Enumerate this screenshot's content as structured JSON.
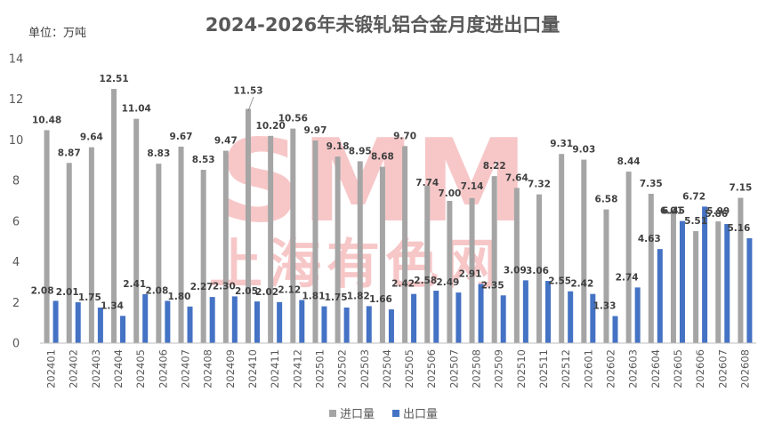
{
  "chart_data": {
    "type": "bar",
    "title": "2024-2026年未锻轧铝合金月度进出口量",
    "unit_label": "单位：万吨",
    "ylim": [
      0,
      14
    ],
    "yticks": [
      0,
      2,
      4,
      6,
      8,
      10,
      12,
      14
    ],
    "grid": false,
    "legend_position": "bottom",
    "categories": [
      "202401",
      "202402",
      "202403",
      "202404",
      "202405",
      "202406",
      "202407",
      "202408",
      "202409",
      "202410",
      "202411",
      "202412",
      "202501",
      "202502",
      "202503",
      "202504",
      "202505",
      "202506",
      "202507",
      "202508",
      "202509",
      "202510",
      "202511",
      "202512",
      "202601",
      "202602",
      "202603",
      "202604",
      "202605",
      "202606",
      "202607",
      "202608"
    ],
    "series": [
      {
        "name": "进口量",
        "color": "#a5a5a5",
        "values": [
          10.48,
          8.87,
          9.64,
          12.51,
          11.04,
          8.83,
          9.67,
          8.53,
          9.47,
          11.53,
          10.2,
          10.56,
          9.97,
          9.18,
          8.95,
          8.68,
          9.7,
          7.74,
          7.0,
          7.14,
          8.22,
          7.64,
          7.32,
          9.31,
          9.03,
          6.58,
          8.44,
          7.35,
          6.45,
          5.51,
          5.99,
          7.15
        ],
        "labels": [
          "10.48",
          "8.87",
          "9.64",
          "12.51",
          "11.04",
          "8.83",
          "9.67",
          "8.53",
          "9.47",
          "11.53",
          "10.20",
          "10.56",
          "9.97",
          "9.18",
          "8.95",
          "8.68",
          "9.70",
          "7.74",
          "7.00",
          "7.14",
          "8.22",
          "7.64",
          "7.32",
          "9.31",
          "9.03",
          "6.58",
          "8.44",
          "7.35",
          "6.45",
          "5.51",
          "5.99",
          "7.15"
        ]
      },
      {
        "name": "出口量",
        "color": "#4472c4",
        "values": [
          2.08,
          2.01,
          1.75,
          1.34,
          2.41,
          2.08,
          1.8,
          2.27,
          2.3,
          2.05,
          2.02,
          2.12,
          1.81,
          1.75,
          1.82,
          1.66,
          2.42,
          2.58,
          2.49,
          2.91,
          2.35,
          3.09,
          3.06,
          2.55,
          2.42,
          1.33,
          2.74,
          4.63,
          6.01,
          6.72,
          5.86,
          5.16
        ],
        "labels": [
          "2.08",
          "2.01",
          "1.75",
          "1.34",
          "2.41",
          "2.08",
          "1.80",
          "2.27",
          "2.30",
          "2.05",
          "2.02",
          "2.12",
          "1.81",
          "1.75",
          "1.82",
          "1.66",
          "2.42",
          "2.58",
          "2.49",
          "2.91",
          "2.35",
          "3.09",
          "3.06",
          "2.55",
          "2.42",
          "1.33",
          "2.74",
          "4.63",
          "6.01",
          "6.72",
          "5.86",
          "5.16"
        ]
      }
    ]
  },
  "watermark": {
    "main": "SMM",
    "sub": "上海有色网",
    "color": "#e8484d"
  }
}
